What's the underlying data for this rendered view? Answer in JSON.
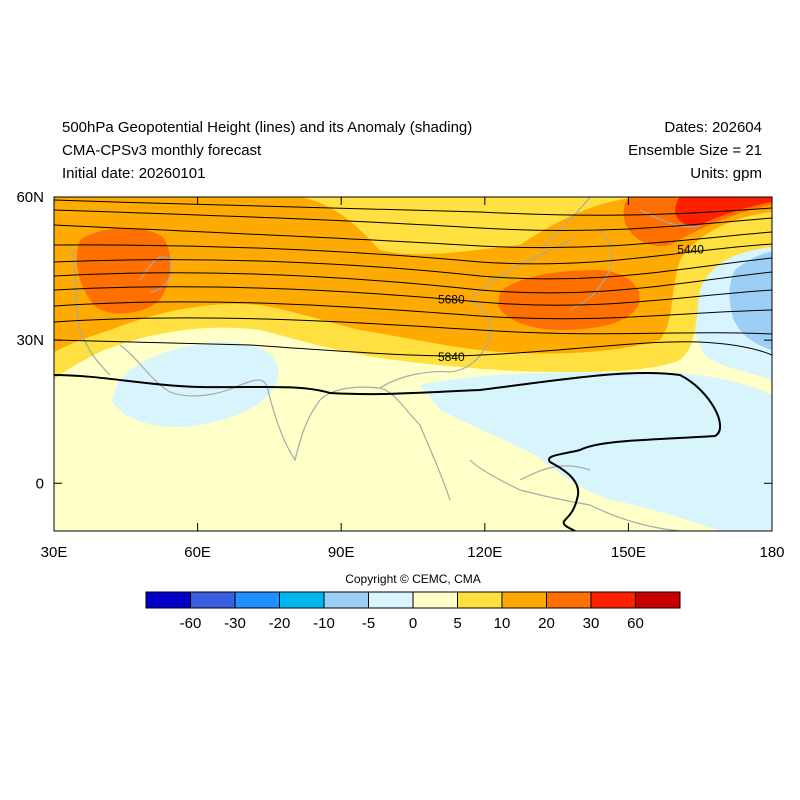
{
  "header": {
    "title_line1": "500hPa Geopotential Height (lines) and its Anomaly (shading)",
    "title_line2": "CMA-CPSv3 monthly forecast",
    "title_line3": "Initial date: 20260101",
    "dates": "Dates: 202604",
    "ensemble": "Ensemble Size = 21",
    "units": "Units: gpm"
  },
  "map": {
    "lon_range": [
      30,
      180
    ],
    "lat_range": [
      -10,
      60
    ],
    "x_ticks": [
      {
        "lon": 30,
        "label": "30E"
      },
      {
        "lon": 60,
        "label": "60E"
      },
      {
        "lon": 90,
        "label": "90E"
      },
      {
        "lon": 120,
        "label": "120E"
      },
      {
        "lon": 150,
        "label": "150E"
      },
      {
        "lon": 180,
        "label": "180"
      }
    ],
    "y_ticks": [
      {
        "lat": 60,
        "label": "60N"
      },
      {
        "lat": 30,
        "label": "30N"
      },
      {
        "lat": 0,
        "label": "0"
      }
    ],
    "contour_labels": [
      {
        "text": "5440",
        "lon": 163,
        "lat": 49
      },
      {
        "text": "5680",
        "lon": 113,
        "lat": 38.5
      },
      {
        "text": "5840",
        "lon": 113,
        "lat": 26.5
      }
    ]
  },
  "colorbar": {
    "colors": [
      "#0000c8",
      "#3a5fe0",
      "#1e90ff",
      "#00b8f0",
      "#9ccff5",
      "#d8f4fd",
      "#ffffc8",
      "#ffe040",
      "#ffaa00",
      "#ff7000",
      "#ff2000",
      "#c80000"
    ],
    "labels": [
      "-60",
      "-30",
      "-20",
      "-10",
      "-5",
      "0",
      "5",
      "10",
      "20",
      "30",
      "60"
    ]
  },
  "copyright": "Copyright © CEMC, CMA"
}
